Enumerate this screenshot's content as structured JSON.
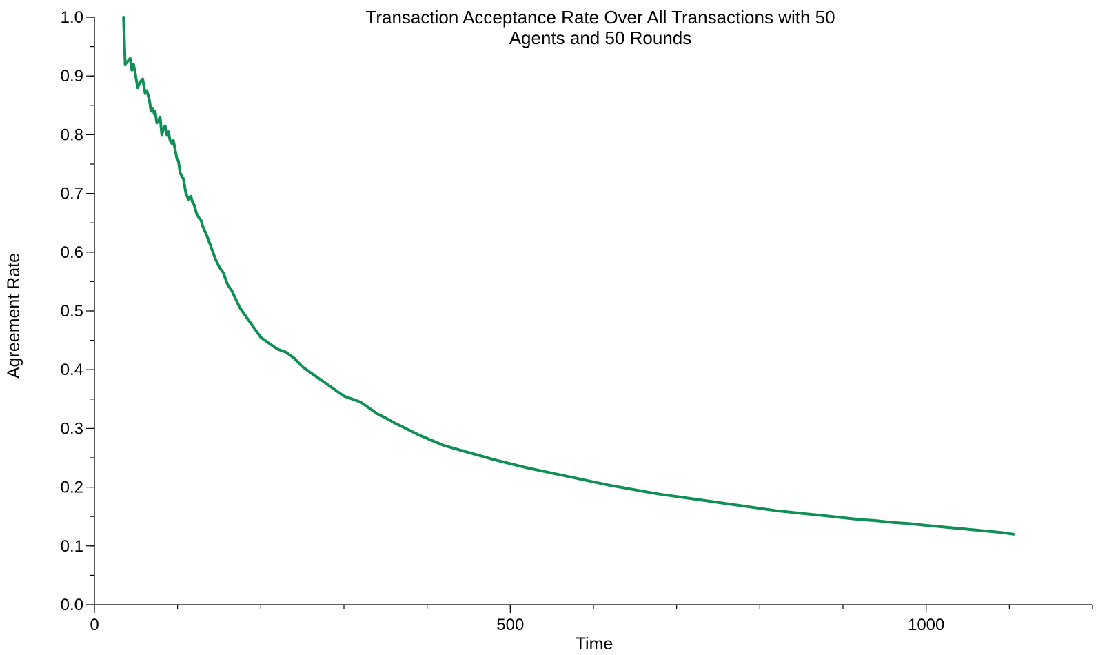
{
  "chart_data": {
    "type": "line",
    "title_lines": [
      "Transaction Acceptance Rate Over All Transactions with 50",
      "Agents and 50 Rounds"
    ],
    "xlabel": "Time",
    "ylabel": "Agreement Rate",
    "xlim": [
      0,
      1200
    ],
    "ylim": [
      0,
      1.0
    ],
    "x_major_ticks": [
      0,
      500,
      1000
    ],
    "x_major_tick_labels": [
      "0",
      "500",
      "1000"
    ],
    "x_minor_step": 100,
    "y_major_ticks": [
      0.0,
      0.1,
      0.2,
      0.3,
      0.4,
      0.5,
      0.6,
      0.7,
      0.8,
      0.9,
      1.0
    ],
    "y_major_tick_labels": [
      "0.0",
      "0.1",
      "0.2",
      "0.3",
      "0.4",
      "0.5",
      "0.6",
      "0.7",
      "0.8",
      "0.9",
      "1.0"
    ],
    "y_minor_step": 0.05,
    "grid": false,
    "color": "#0f8f55",
    "series": [
      {
        "x": [
          35,
          37,
          40,
          43,
          45,
          47,
          49,
          52,
          55,
          58,
          61,
          63,
          66,
          68,
          70,
          72,
          73,
          75,
          77,
          79,
          81,
          83,
          85,
          87,
          89,
          91,
          93,
          95,
          97,
          99,
          101,
          103,
          105,
          107,
          110,
          113,
          116,
          118,
          120,
          123,
          125,
          128,
          130,
          133,
          136,
          140,
          145,
          150,
          155,
          160,
          165,
          170,
          175,
          180,
          185,
          190,
          200,
          210,
          220,
          230,
          240,
          250,
          260,
          270,
          280,
          290,
          300,
          310,
          320,
          330,
          340,
          350,
          360,
          370,
          380,
          390,
          400,
          420,
          440,
          460,
          480,
          500,
          520,
          540,
          560,
          580,
          600,
          620,
          640,
          660,
          680,
          700,
          720,
          740,
          760,
          780,
          800,
          820,
          840,
          860,
          880,
          900,
          920,
          940,
          960,
          980,
          1000,
          1030,
          1060,
          1090,
          1105
        ],
        "y": [
          1.0,
          0.92,
          0.925,
          0.93,
          0.91,
          0.92,
          0.905,
          0.88,
          0.89,
          0.895,
          0.87,
          0.875,
          0.86,
          0.84,
          0.845,
          0.835,
          0.84,
          0.82,
          0.825,
          0.83,
          0.8,
          0.81,
          0.815,
          0.8,
          0.805,
          0.79,
          0.785,
          0.79,
          0.775,
          0.76,
          0.755,
          0.735,
          0.73,
          0.725,
          0.7,
          0.69,
          0.695,
          0.685,
          0.68,
          0.665,
          0.66,
          0.655,
          0.645,
          0.635,
          0.625,
          0.61,
          0.59,
          0.575,
          0.565,
          0.545,
          0.535,
          0.52,
          0.505,
          0.495,
          0.485,
          0.475,
          0.455,
          0.445,
          0.435,
          0.43,
          0.42,
          0.405,
          0.395,
          0.385,
          0.375,
          0.365,
          0.355,
          0.35,
          0.345,
          0.335,
          0.325,
          0.318,
          0.31,
          0.303,
          0.296,
          0.289,
          0.283,
          0.271,
          0.263,
          0.255,
          0.247,
          0.24,
          0.233,
          0.227,
          0.221,
          0.215,
          0.209,
          0.203,
          0.198,
          0.193,
          0.188,
          0.184,
          0.18,
          0.176,
          0.172,
          0.168,
          0.164,
          0.16,
          0.157,
          0.154,
          0.151,
          0.148,
          0.145,
          0.143,
          0.14,
          0.138,
          0.135,
          0.131,
          0.127,
          0.123,
          0.12
        ]
      }
    ]
  }
}
